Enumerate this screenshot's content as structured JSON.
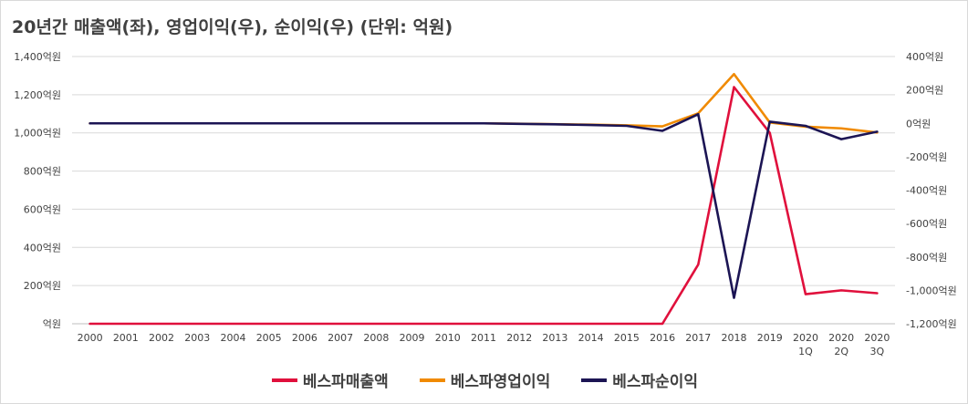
{
  "chart_data": {
    "type": "line",
    "title": "20년간 매출액(좌), 영업이익(우), 순이익(우) (단위: 억원)",
    "categories": [
      [
        "2000"
      ],
      [
        "2001"
      ],
      [
        "2002"
      ],
      [
        "2003"
      ],
      [
        "2004"
      ],
      [
        "2005"
      ],
      [
        "2006"
      ],
      [
        "2007"
      ],
      [
        "2008"
      ],
      [
        "2009"
      ],
      [
        "2010"
      ],
      [
        "2011"
      ],
      [
        "2012"
      ],
      [
        "2013"
      ],
      [
        "2014"
      ],
      [
        "2015"
      ],
      [
        "2016"
      ],
      [
        "2017"
      ],
      [
        "2018"
      ],
      [
        "2019"
      ],
      [
        "2020",
        "1Q"
      ],
      [
        "2020",
        "2Q"
      ],
      [
        "2020",
        "3Q"
      ]
    ],
    "y_left": {
      "min": 0,
      "max": 1400,
      "step": 200,
      "tick_labels": [
        "억원",
        "200억원",
        "400억원",
        "600억원",
        "800억원",
        "1,000억원",
        "1,200억원",
        "1,400억원"
      ]
    },
    "y_right": {
      "min": -1200,
      "max": 400,
      "step": 200,
      "tick_labels": [
        "-1,200억원",
        "-1,000억원",
        "-800억원",
        "-600억원",
        "-400억원",
        "-200억원",
        "0억원",
        "200억원",
        "400억원"
      ]
    },
    "grid": true,
    "legend_position": "bottom",
    "series": [
      {
        "name": "베스파매출액",
        "axis": "left",
        "color": "#e0103c",
        "values": [
          0,
          0,
          0,
          0,
          0,
          0,
          0,
          0,
          0,
          0,
          0,
          0,
          0,
          0,
          0,
          0,
          0,
          310,
          1240,
          1000,
          155,
          175,
          160
        ]
      },
      {
        "name": "베스파영업이익",
        "axis": "right",
        "color": "#f08a00",
        "values": [
          0,
          0,
          0,
          0,
          0,
          0,
          0,
          0,
          0,
          0,
          0,
          0,
          -2,
          -5,
          -8,
          -12,
          -18,
          60,
          295,
          5,
          -20,
          -30,
          -55
        ]
      },
      {
        "name": "베스파순이익",
        "axis": "right",
        "color": "#1c1554",
        "values": [
          0,
          0,
          0,
          0,
          0,
          0,
          0,
          0,
          0,
          0,
          0,
          0,
          -3,
          -6,
          -10,
          -15,
          -45,
          55,
          -1045,
          10,
          -15,
          -95,
          -50
        ]
      }
    ]
  }
}
